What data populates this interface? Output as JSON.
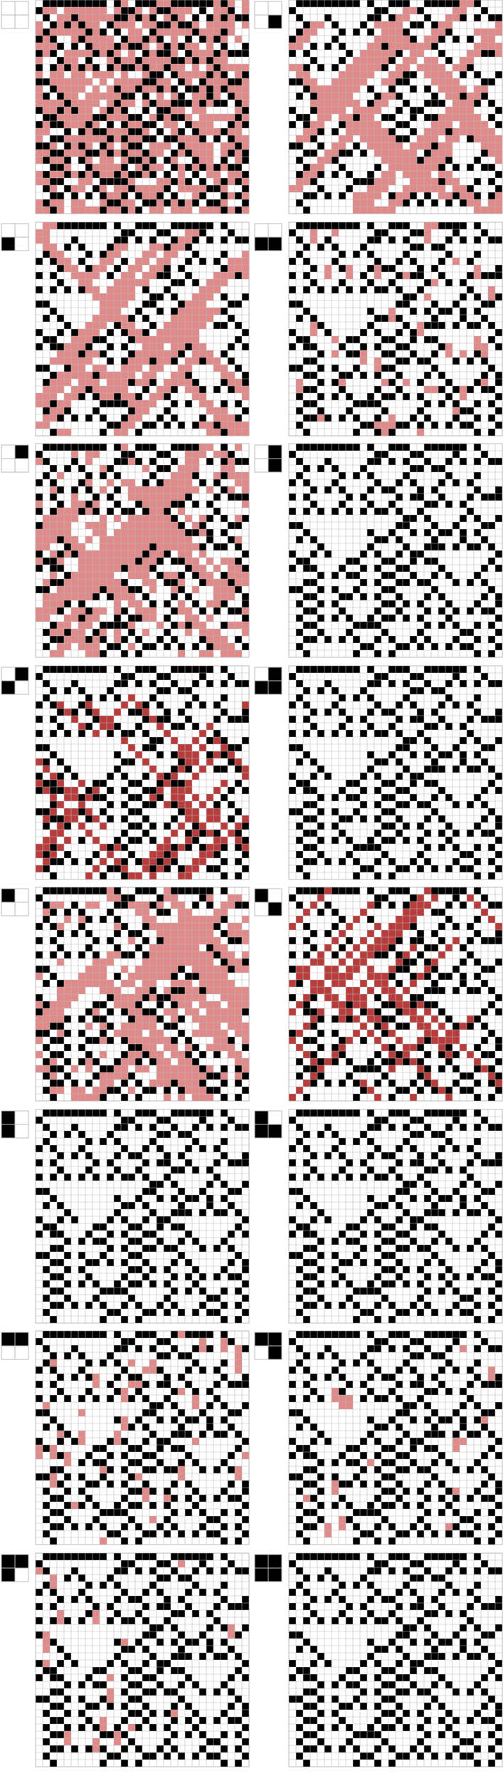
{
  "figure": {
    "rows": 8,
    "cols": 2,
    "grid_size": 30,
    "colors": {
      "background": "#ffffff",
      "grid_line": "#bbbbbb",
      "black_cell": "#000000",
      "white_cell": "#ffffff",
      "highlight_light": "#e08a8a",
      "highlight_dark": "#b83c3c"
    }
  },
  "panels": [
    {
      "pattern": [
        0,
        0,
        0,
        0
      ],
      "highlight": "heavy"
    },
    {
      "pattern": [
        0,
        0,
        0,
        1
      ],
      "highlight": "diagonal"
    },
    {
      "pattern": [
        0,
        0,
        1,
        0
      ],
      "highlight": "diagonal"
    },
    {
      "pattern": [
        0,
        0,
        1,
        1
      ],
      "highlight": "sparse"
    },
    {
      "pattern": [
        0,
        1,
        0,
        0
      ],
      "highlight": "medium"
    },
    {
      "pattern": [
        0,
        1,
        0,
        1
      ],
      "highlight": "none"
    },
    {
      "pattern": [
        0,
        1,
        1,
        0
      ],
      "highlight": "dark"
    },
    {
      "pattern": [
        0,
        1,
        1,
        1
      ],
      "highlight": "none"
    },
    {
      "pattern": [
        1,
        0,
        0,
        0
      ],
      "highlight": "medium"
    },
    {
      "pattern": [
        1,
        0,
        0,
        1
      ],
      "highlight": "dark"
    },
    {
      "pattern": [
        1,
        0,
        1,
        0
      ],
      "highlight": "none"
    },
    {
      "pattern": [
        1,
        0,
        1,
        1
      ],
      "highlight": "none"
    },
    {
      "pattern": [
        1,
        1,
        0,
        0
      ],
      "highlight": "sparse"
    },
    {
      "pattern": [
        1,
        1,
        0,
        1
      ],
      "highlight": "minimal"
    },
    {
      "pattern": [
        1,
        1,
        1,
        0
      ],
      "highlight": "minimal"
    },
    {
      "pattern": [
        1,
        1,
        1,
        1
      ],
      "highlight": "none"
    }
  ]
}
